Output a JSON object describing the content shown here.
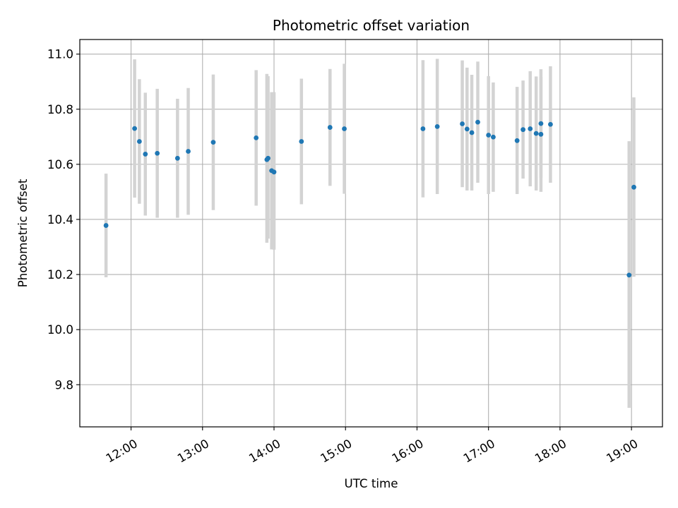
{
  "chart_data": {
    "type": "scatter",
    "title": "Photometric offset variation",
    "xlabel": "UTC time",
    "ylabel": "Photometric offset",
    "grid": true,
    "colors": {
      "point": "#1f77b4",
      "errorbar": "#d3d3d3",
      "grid": "#b0b0b0"
    },
    "x_ticks": [
      "12:00",
      "13:00",
      "14:00",
      "15:00",
      "16:00",
      "17:00",
      "18:00",
      "19:00"
    ],
    "y_ticks": [
      9.8,
      10.0,
      10.2,
      10.4,
      10.6,
      10.8,
      11.0
    ],
    "xlim": [
      "11:17",
      "19:26"
    ],
    "ylim": [
      9.647,
      11.053
    ],
    "series": [
      {
        "points": [
          {
            "x": "11:39",
            "y": 10.378,
            "ylow": 10.19,
            "yhigh": 10.566
          },
          {
            "x": "12:03",
            "y": 10.73,
            "ylow": 10.479,
            "yhigh": 10.981
          },
          {
            "x": "12:07",
            "y": 10.683,
            "ylow": 10.457,
            "yhigh": 10.909
          },
          {
            "x": "12:12",
            "y": 10.637,
            "ylow": 10.414,
            "yhigh": 10.86
          },
          {
            "x": "12:22",
            "y": 10.64,
            "ylow": 10.406,
            "yhigh": 10.874
          },
          {
            "x": "12:39",
            "y": 10.622,
            "ylow": 10.406,
            "yhigh": 10.838
          },
          {
            "x": "12:48",
            "y": 10.647,
            "ylow": 10.417,
            "yhigh": 10.877
          },
          {
            "x": "13:09",
            "y": 10.68,
            "ylow": 10.434,
            "yhigh": 10.926
          },
          {
            "x": "13:45",
            "y": 10.696,
            "ylow": 10.45,
            "yhigh": 10.942
          },
          {
            "x": "13:54",
            "y": 10.617,
            "ylow": 10.315,
            "yhigh": 10.928
          },
          {
            "x": "13:55",
            "y": 10.622,
            "ylow": 10.33,
            "yhigh": 10.92
          },
          {
            "x": "13:58",
            "y": 10.577,
            "ylow": 10.291,
            "yhigh": 10.862
          },
          {
            "x": "14:00",
            "y": 10.572,
            "ylow": 10.29,
            "yhigh": 10.862
          },
          {
            "x": "14:23",
            "y": 10.683,
            "ylow": 10.455,
            "yhigh": 10.911
          },
          {
            "x": "14:47",
            "y": 10.734,
            "ylow": 10.522,
            "yhigh": 10.946
          },
          {
            "x": "14:59",
            "y": 10.729,
            "ylow": 10.493,
            "yhigh": 10.965
          },
          {
            "x": "16:05",
            "y": 10.729,
            "ylow": 10.48,
            "yhigh": 10.978
          },
          {
            "x": "16:17",
            "y": 10.737,
            "ylow": 10.492,
            "yhigh": 10.983
          },
          {
            "x": "16:38",
            "y": 10.747,
            "ylow": 10.517,
            "yhigh": 10.977
          },
          {
            "x": "16:42",
            "y": 10.728,
            "ylow": 10.505,
            "yhigh": 10.951
          },
          {
            "x": "16:46",
            "y": 10.715,
            "ylow": 10.505,
            "yhigh": 10.925
          },
          {
            "x": "16:51",
            "y": 10.753,
            "ylow": 10.533,
            "yhigh": 10.973
          },
          {
            "x": "17:00",
            "y": 10.706,
            "ylow": 10.492,
            "yhigh": 10.92
          },
          {
            "x": "17:04",
            "y": 10.699,
            "ylow": 10.5,
            "yhigh": 10.897
          },
          {
            "x": "17:24",
            "y": 10.686,
            "ylow": 10.492,
            "yhigh": 10.881
          },
          {
            "x": "17:29",
            "y": 10.726,
            "ylow": 10.548,
            "yhigh": 10.904
          },
          {
            "x": "17:35",
            "y": 10.729,
            "ylow": 10.52,
            "yhigh": 10.938
          },
          {
            "x": "17:40",
            "y": 10.712,
            "ylow": 10.505,
            "yhigh": 10.919
          },
          {
            "x": "17:44",
            "y": 10.748,
            "ylow": 10.552,
            "yhigh": 10.945
          },
          {
            "x": "17:44",
            "y": 10.709,
            "ylow": 10.5,
            "yhigh": 10.918
          },
          {
            "x": "17:52",
            "y": 10.745,
            "ylow": 10.533,
            "yhigh": 10.956
          },
          {
            "x": "18:58",
            "y": 10.198,
            "ylow": 9.716,
            "yhigh": 10.684
          },
          {
            "x": "19:02",
            "y": 10.517,
            "ylow": 10.192,
            "yhigh": 10.843
          }
        ]
      }
    ]
  }
}
